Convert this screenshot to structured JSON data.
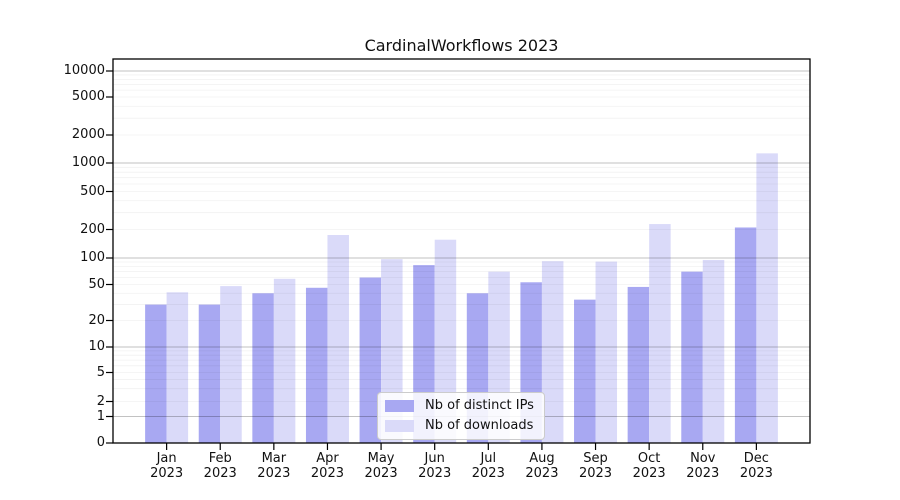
{
  "chart_data": {
    "type": "bar",
    "title": "CardinalWorkflows 2023",
    "categories": [
      "Jan",
      "Feb",
      "Mar",
      "Apr",
      "May",
      "Jun",
      "Jul",
      "Aug",
      "Sep",
      "Oct",
      "Nov",
      "Dec"
    ],
    "year_label": "2023",
    "series": [
      {
        "name": "Nb of distinct IPs",
        "color": "#a8a8f2",
        "values": [
          30,
          30,
          40,
          46,
          60,
          83,
          40,
          53,
          34,
          47,
          70,
          210
        ]
      },
      {
        "name": "Nb of downloads",
        "color": "#dadaf9",
        "values": [
          41,
          48,
          58,
          175,
          97,
          156,
          70,
          92,
          91,
          228,
          95,
          1270
        ]
      }
    ],
    "y_ticks": [
      10000,
      5000,
      2000,
      1000,
      500,
      200,
      100,
      50,
      20,
      10,
      5,
      2,
      1,
      0
    ],
    "yscale": "symlog",
    "ylim": [
      0,
      20000
    ],
    "grid": "both",
    "legend_position": "lower-center",
    "colors": {
      "major_grid": "#b9b9b9",
      "minor_grid": "#ebebeb",
      "axis": "#000000"
    }
  }
}
